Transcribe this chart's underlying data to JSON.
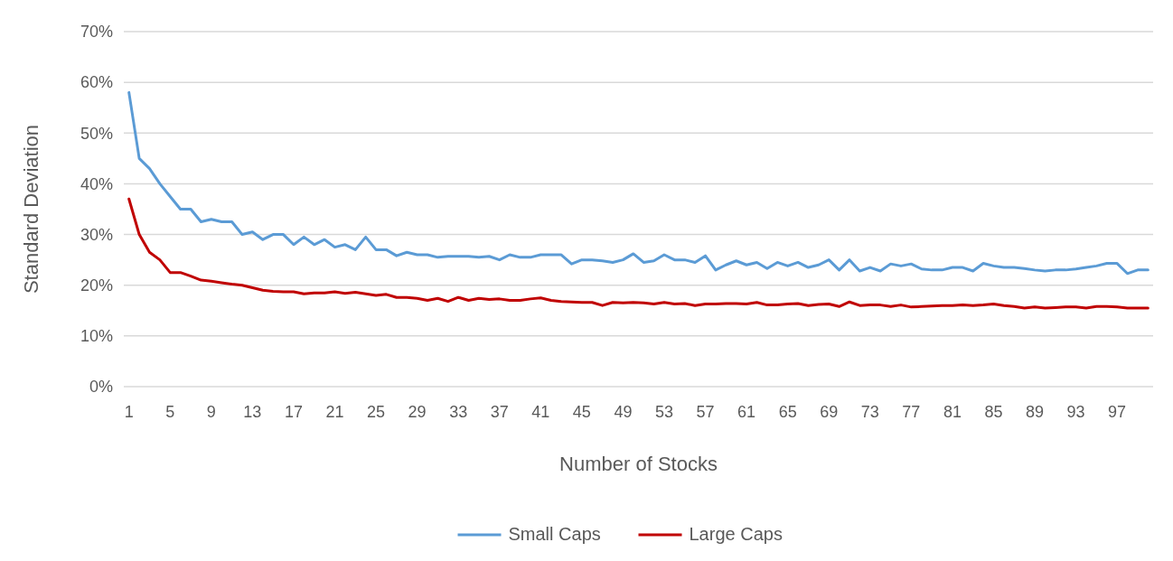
{
  "chart_data": {
    "type": "line",
    "xlabel": "Number of Stocks",
    "ylabel": "Standard Deviation",
    "categories": [
      "1",
      null,
      null,
      null,
      "5",
      null,
      null,
      null,
      "9",
      null,
      null,
      null,
      "13",
      null,
      null,
      null,
      "17",
      null,
      null,
      null,
      "21",
      null,
      null,
      null,
      "25",
      null,
      null,
      null,
      "29",
      null,
      null,
      null,
      "33",
      null,
      null,
      null,
      "37",
      null,
      null,
      null,
      "41",
      null,
      null,
      null,
      "45",
      null,
      null,
      null,
      "49",
      null,
      null,
      null,
      "53",
      null,
      null,
      null,
      "57",
      null,
      null,
      null,
      "61",
      null,
      null,
      null,
      "65",
      null,
      null,
      null,
      "69",
      null,
      null,
      null,
      "73",
      null,
      null,
      null,
      "77",
      null,
      null,
      null,
      "81",
      null,
      null,
      null,
      "85",
      null,
      null,
      null,
      "89",
      null,
      null,
      null,
      "93",
      null,
      null,
      null,
      "97",
      null,
      null,
      null
    ],
    "series": [
      {
        "name": "Small Caps",
        "color": "#5b9bd5",
        "values": [
          58,
          45,
          43,
          40,
          37.5,
          35,
          35,
          32.5,
          33,
          32.5,
          32.5,
          30,
          30.5,
          29,
          30,
          30,
          28,
          29.5,
          28,
          29,
          27.5,
          28,
          27,
          29.5,
          27,
          27,
          25.8,
          26.5,
          26,
          26,
          25.5,
          25.7,
          25.7,
          25.7,
          25.5,
          25.7,
          25,
          26,
          25.5,
          25.5,
          26,
          26,
          26,
          24.2,
          25,
          25,
          24.8,
          24.5,
          25,
          26.2,
          24.5,
          24.8,
          26,
          25,
          25,
          24.5,
          25.8,
          23,
          24,
          24.8,
          24,
          24.5,
          23.3,
          24.5,
          23.8,
          24.5,
          23.5,
          24,
          25,
          23,
          25,
          22.8,
          23.5,
          22.8,
          24.2,
          23.8,
          24.2,
          23.2,
          23,
          23,
          23.5,
          23.5,
          22.8,
          24.3,
          23.8,
          23.5,
          23.5,
          23.3,
          23,
          22.8,
          23,
          23,
          23.2,
          23.5,
          23.8,
          24.3,
          24.3,
          22.3,
          23,
          23
        ]
      },
      {
        "name": "Large Caps",
        "color": "#c00000",
        "values": [
          37,
          30,
          26.5,
          25,
          22.5,
          22.5,
          21.8,
          21,
          20.8,
          20.5,
          20.2,
          20,
          19.5,
          19,
          18.8,
          18.7,
          18.7,
          18.3,
          18.5,
          18.5,
          18.7,
          18.4,
          18.6,
          18.3,
          18,
          18.2,
          17.6,
          17.6,
          17.4,
          17,
          17.4,
          16.8,
          17.6,
          17,
          17.4,
          17.2,
          17.3,
          17,
          17,
          17.3,
          17.5,
          17,
          16.8,
          16.7,
          16.6,
          16.6,
          16,
          16.6,
          16.5,
          16.6,
          16.5,
          16.3,
          16.6,
          16.3,
          16.4,
          16,
          16.3,
          16.3,
          16.4,
          16.4,
          16.3,
          16.6,
          16.1,
          16.1,
          16.3,
          16.4,
          16,
          16.2,
          16.3,
          15.8,
          16.7,
          16,
          16.1,
          16.1,
          15.8,
          16.1,
          15.7,
          15.8,
          15.9,
          16,
          16,
          16.1,
          16,
          16.1,
          16.3,
          16,
          15.8,
          15.5,
          15.7,
          15.5,
          15.6,
          15.7,
          15.7,
          15.5,
          15.8,
          15.8,
          15.7,
          15.5,
          15.5,
          15.5
        ]
      }
    ],
    "ylim": [
      0,
      70
    ],
    "yticks": [
      {
        "value": 0,
        "label": "0%"
      },
      {
        "value": 10,
        "label": "10%"
      },
      {
        "value": 20,
        "label": "20%"
      },
      {
        "value": 30,
        "label": "30%"
      },
      {
        "value": 40,
        "label": "40%"
      },
      {
        "value": 50,
        "label": "50%"
      },
      {
        "value": 60,
        "label": "60%"
      },
      {
        "value": 70,
        "label": "70%"
      }
    ],
    "grid": "y",
    "legend": "bottom",
    "marker": "none",
    "line_style": "solid"
  }
}
